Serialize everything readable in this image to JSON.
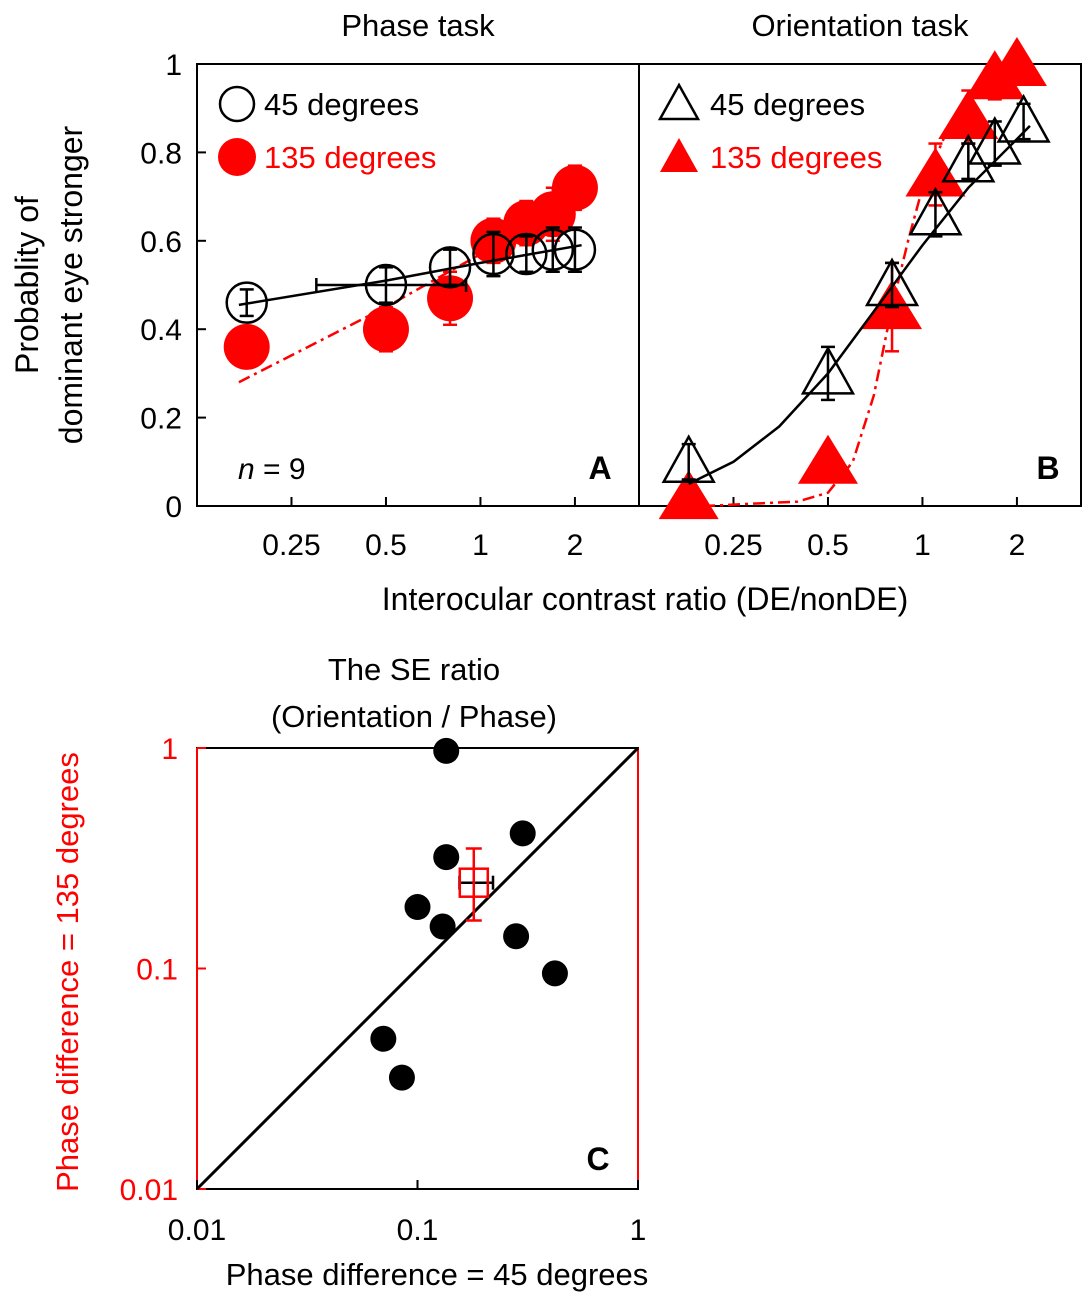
{
  "chart_data": [
    {
      "panel": "A",
      "type": "scatter",
      "title": "Phase task",
      "ylabel_line1": "Probablity of",
      "ylabel_line2": "dominant eye stronger",
      "xlabel": "Interocular contrast ratio (DE/nonDE)",
      "x_scale": "log",
      "xlim": [
        0.125,
        3.2
      ],
      "ylim": [
        0,
        1
      ],
      "x_ticks": [
        0.25,
        0.5,
        1,
        2
      ],
      "x_tick_labels": [
        "0.25",
        "0.5",
        "1",
        "2"
      ],
      "y_ticks": [
        0,
        0.2,
        0.4,
        0.6,
        0.8,
        1
      ],
      "y_tick_labels": [
        "0",
        "0.2",
        "0.4",
        "0.6",
        "0.8",
        "1"
      ],
      "annotation_n_label": "n",
      "annotation_n_value": " = 9",
      "panel_label": "A",
      "series": [
        {
          "name": "45 degrees",
          "marker": "circle-open",
          "color": "#000000",
          "x": [
            0.18,
            0.5,
            0.8,
            1.1,
            1.4,
            1.7,
            2.0
          ],
          "y": [
            0.46,
            0.5,
            0.54,
            0.57,
            0.57,
            0.58,
            0.58
          ],
          "err": [
            0.03,
            0.04,
            0.04,
            0.05,
            0.04,
            0.05,
            0.05
          ],
          "xerr_index": 1,
          "xerr_range": [
            0.3,
            0.9
          ],
          "fit_x": [
            0.17,
            0.5,
            1.0,
            2.1
          ],
          "fit_y": [
            0.455,
            0.51,
            0.55,
            0.59
          ]
        },
        {
          "name": "135 degrees",
          "marker": "circle-filled",
          "color": "#ff0000",
          "x": [
            0.18,
            0.5,
            0.8,
            1.1,
            1.4,
            1.7,
            2.0
          ],
          "y": [
            0.36,
            0.4,
            0.47,
            0.6,
            0.64,
            0.66,
            0.72
          ],
          "err": [
            0.03,
            0.05,
            0.06,
            0.05,
            0.05,
            0.06,
            0.05
          ],
          "fit_x": [
            0.17,
            0.5,
            1.0,
            2.1
          ],
          "fit_y": [
            0.28,
            0.45,
            0.57,
            0.7
          ]
        }
      ]
    },
    {
      "panel": "B",
      "type": "scatter",
      "title": "Orientation task",
      "x_scale": "log",
      "xlim": [
        0.125,
        3.2
      ],
      "ylim": [
        0,
        1
      ],
      "x_ticks": [
        0.25,
        0.5,
        1,
        2
      ],
      "x_tick_labels": [
        "0.25",
        "0.5",
        "1",
        "2"
      ],
      "panel_label": "B",
      "series": [
        {
          "name": "45 degrees",
          "marker": "triangle-open",
          "color": "#000000",
          "x": [
            0.18,
            0.5,
            0.8,
            1.1,
            1.4,
            1.7,
            2.1
          ],
          "y": [
            0.1,
            0.3,
            0.5,
            0.66,
            0.78,
            0.82,
            0.87
          ],
          "err": [
            0.04,
            0.06,
            0.05,
            0.05,
            0.04,
            0.05,
            0.04
          ],
          "fit_x": [
            0.18,
            0.25,
            0.35,
            0.5,
            0.7,
            1.0,
            1.4,
            2.0,
            2.2
          ],
          "fit_y": [
            0.05,
            0.1,
            0.18,
            0.3,
            0.44,
            0.59,
            0.72,
            0.83,
            0.86
          ]
        },
        {
          "name": "135 degrees",
          "marker": "triangle-filled",
          "color": "#ff0000",
          "x": [
            0.18,
            0.5,
            0.8,
            1.1,
            1.4,
            1.7,
            2.0
          ],
          "y": [
            0.02,
            0.1,
            0.45,
            0.75,
            0.88,
            0.97,
            1.0
          ],
          "err": [
            0.0,
            0.0,
            0.1,
            0.07,
            0.06,
            0.05,
            0.04
          ],
          "fit_x": [
            0.2,
            0.4,
            0.5,
            0.6,
            0.7,
            0.8,
            0.9,
            1.0,
            1.2,
            1.5,
            1.8
          ],
          "fit_y": [
            0.0,
            0.01,
            0.03,
            0.1,
            0.25,
            0.45,
            0.6,
            0.72,
            0.85,
            0.94,
            0.98
          ]
        }
      ]
    },
    {
      "panel": "C",
      "type": "scatter",
      "title_line1": "The SE ratio",
      "title_line2": "(Orientation / Phase)",
      "xlabel": "Phase difference = 45 degrees",
      "ylabel": "Phase difference = 135 degrees",
      "x_scale": "log",
      "y_scale": "log",
      "xlim": [
        0.01,
        1
      ],
      "ylim": [
        0.01,
        1
      ],
      "x_ticks": [
        0.01,
        0.1,
        1
      ],
      "x_tick_labels": [
        "0.01",
        "0.1",
        "1"
      ],
      "y_ticks": [
        0.01,
        0.1,
        1
      ],
      "y_tick_labels": [
        "0.01",
        "0.1",
        "1"
      ],
      "panel_label": "C",
      "reference_line": "identity",
      "points": {
        "x": [
          0.135,
          0.3,
          0.135,
          0.1,
          0.13,
          0.28,
          0.42,
          0.07,
          0.085
        ],
        "y": [
          0.97,
          0.41,
          0.32,
          0.19,
          0.155,
          0.14,
          0.095,
          0.048,
          0.032
        ]
      },
      "mean": {
        "x": 0.18,
        "y": 0.245,
        "x_err": [
          0.155,
          0.22
        ],
        "y_err": [
          0.165,
          0.35
        ]
      },
      "y_axis_color": "#ff0000"
    }
  ]
}
